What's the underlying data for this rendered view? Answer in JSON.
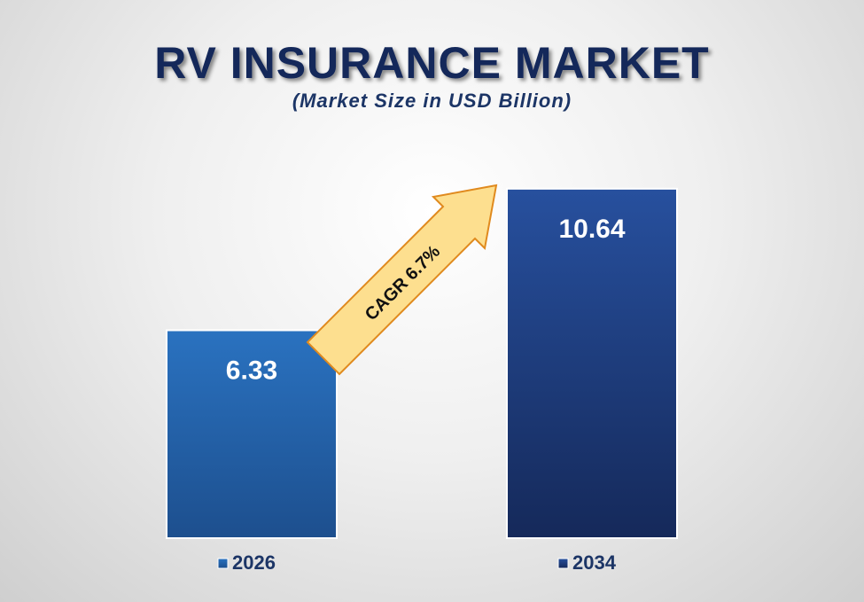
{
  "chart_data": {
    "type": "bar",
    "title": "RV INSURANCE MARKET",
    "subtitle": "(Market Size in USD Billion)",
    "categories": [
      "2026",
      "2034"
    ],
    "values": [
      6.33,
      10.64
    ],
    "value_labels": [
      "6.33",
      "10.64"
    ],
    "legend_entries": [
      "2026",
      "2034"
    ],
    "legend_placement": "bottom",
    "grid": false,
    "ylim": [
      0,
      11.5
    ],
    "annotation": "CAGR  6.7%",
    "colors": {
      "bar_1_top": "#2a72c0",
      "bar_1_bottom": "#1d4f8e",
      "bar_2_top": "#27509e",
      "bar_2_bottom": "#15295a",
      "arrow_fill": "#fddf8f",
      "arrow_stroke": "#e08a1e",
      "title": "#14285a"
    }
  }
}
